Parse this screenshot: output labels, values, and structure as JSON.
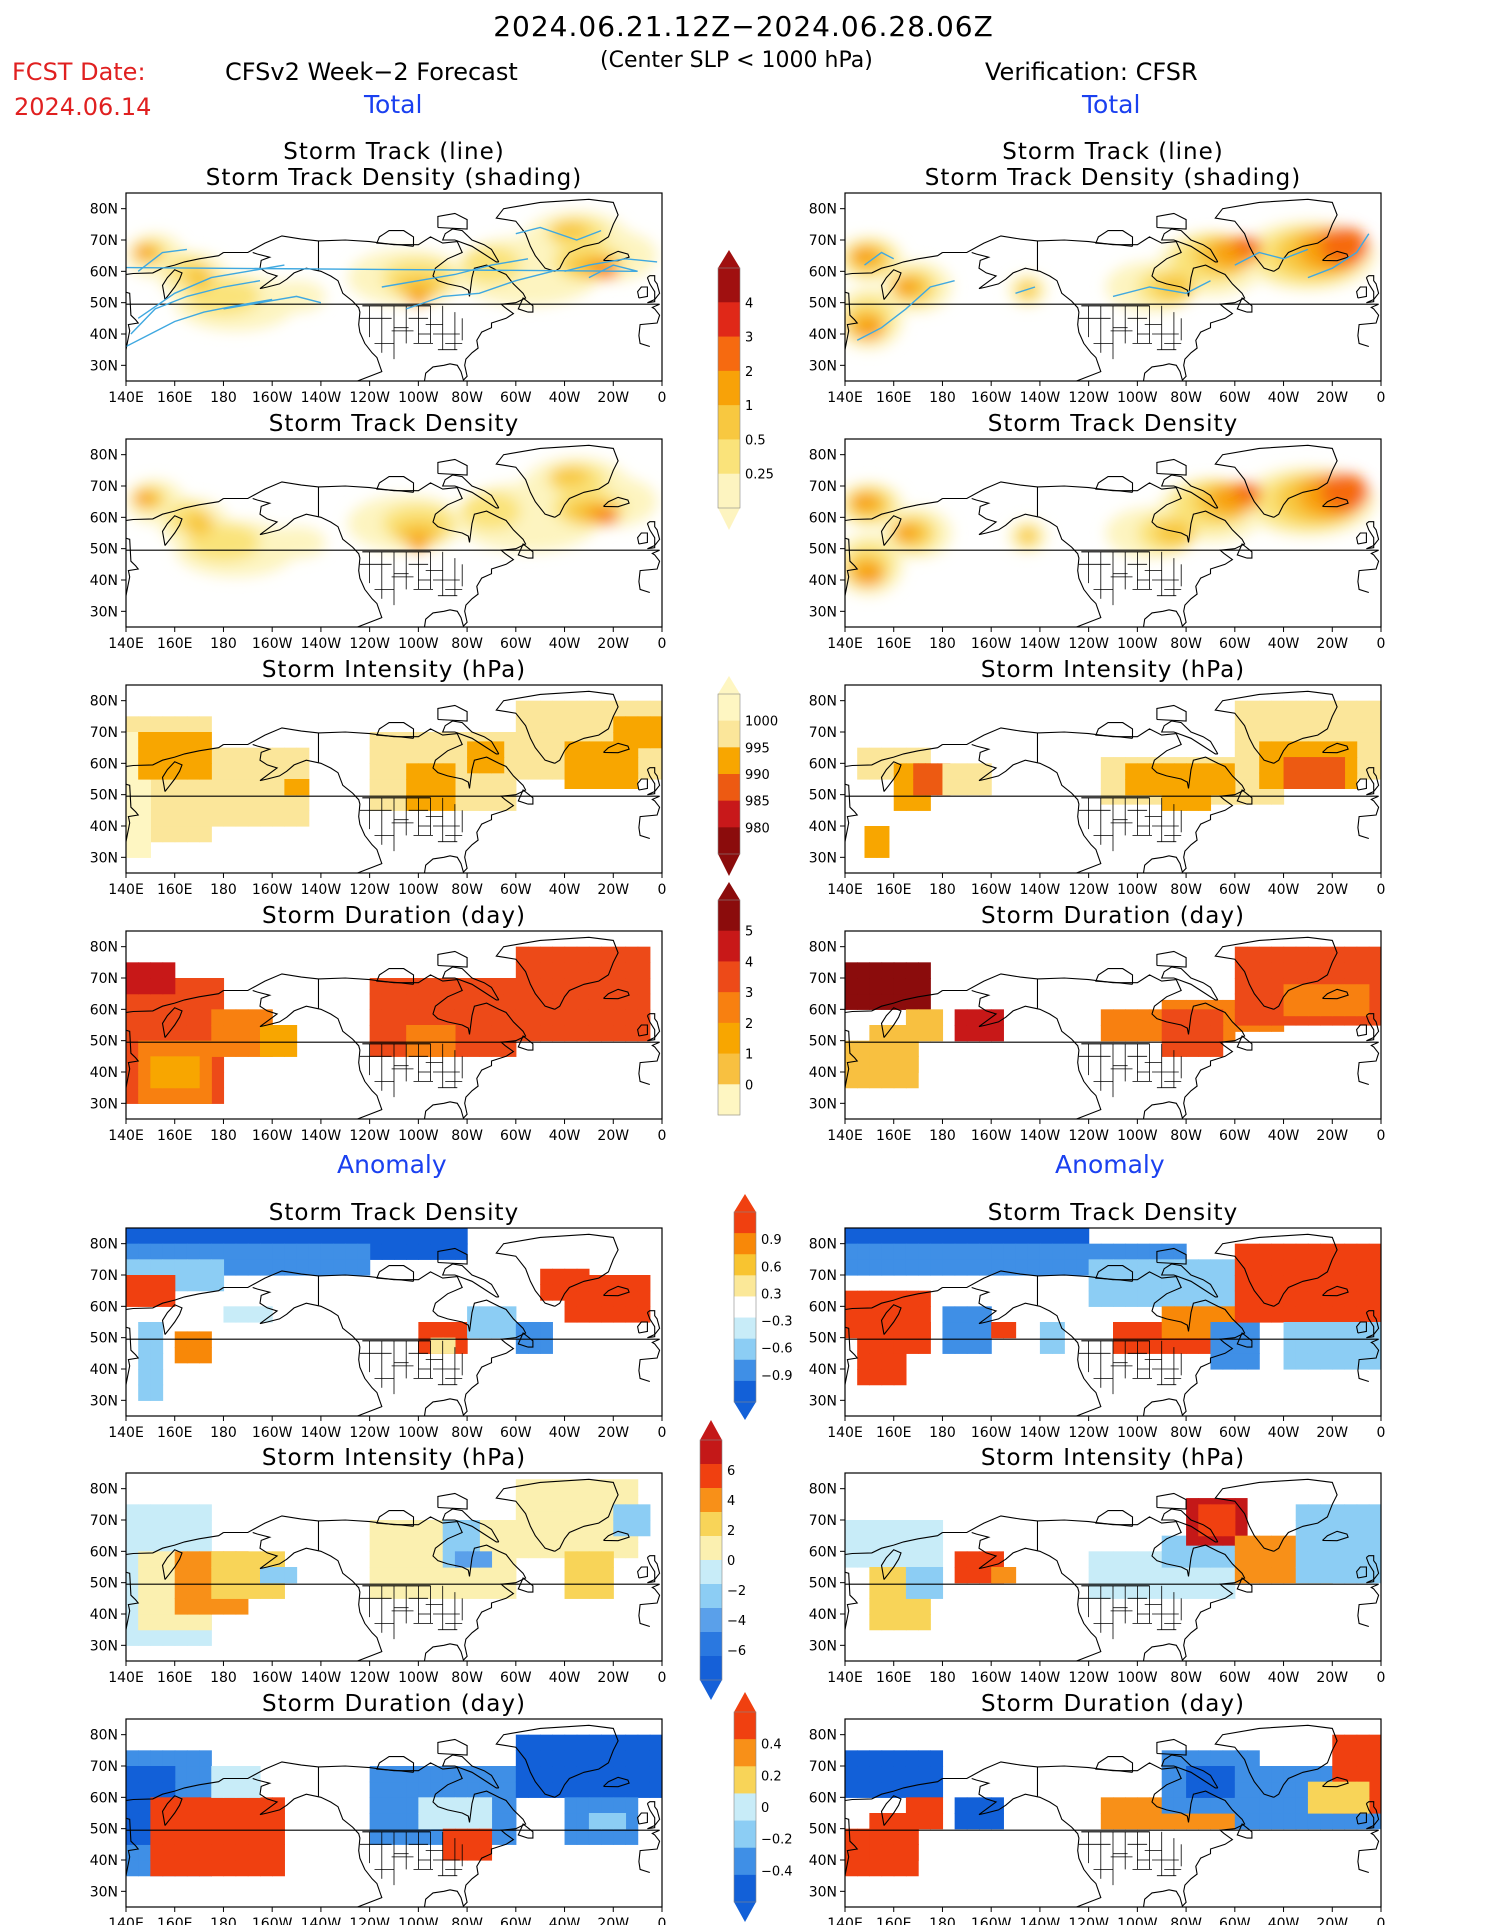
{
  "header": {
    "title": "2024.06.21.12Z−2024.06.28.06Z",
    "subtitle": "(Center SLP < 1000 hPa)",
    "fcst_label": "FCST Date:",
    "fcst_date": "2024.06.14",
    "left_title": "CFSv2 Week−2 Forecast",
    "right_title": "Verification: CFSR"
  },
  "sections": {
    "total_label": "Total",
    "anomaly_label": "Anomaly"
  },
  "axes": {
    "lat_labels": [
      "80N",
      "70N",
      "60N",
      "50N",
      "40N",
      "30N"
    ],
    "lon_labels": [
      "140E",
      "160E",
      "180",
      "160W",
      "140W",
      "120W",
      "100W",
      "80W",
      "60W",
      "40W",
      "20W",
      "0"
    ]
  },
  "panels": [
    {
      "id": "fc-track",
      "column": "forecast",
      "title": [
        "Storm Track (line)",
        "Storm Track Density (shading)"
      ]
    },
    {
      "id": "fc-density",
      "column": "forecast",
      "title": [
        "Storm Track Density"
      ]
    },
    {
      "id": "fc-intensity",
      "column": "forecast",
      "title": [
        "Storm Intensity (hPa)"
      ]
    },
    {
      "id": "fc-duration",
      "column": "forecast",
      "title": [
        "Storm Duration (day)"
      ]
    },
    {
      "id": "fc-density-anom",
      "column": "forecast",
      "title": [
        "Storm Track Density"
      ]
    },
    {
      "id": "fc-intensity-anom",
      "column": "forecast",
      "title": [
        "Storm Intensity (hPa)"
      ]
    },
    {
      "id": "fc-duration-anom",
      "column": "forecast",
      "title": [
        "Storm Duration (day)"
      ]
    },
    {
      "id": "vf-track",
      "column": "verification",
      "title": [
        "Storm Track (line)",
        "Storm Track Density (shading)"
      ]
    },
    {
      "id": "vf-density",
      "column": "verification",
      "title": [
        "Storm Track Density"
      ]
    },
    {
      "id": "vf-intensity",
      "column": "verification",
      "title": [
        "Storm Intensity (hPa)"
      ]
    },
    {
      "id": "vf-duration",
      "column": "verification",
      "title": [
        "Storm Duration (day)"
      ]
    },
    {
      "id": "vf-density-anom",
      "column": "verification",
      "title": [
        "Storm Track Density"
      ]
    },
    {
      "id": "vf-intensity-anom",
      "column": "verification",
      "title": [
        "Storm Intensity (hPa)"
      ]
    },
    {
      "id": "vf-duration-anom",
      "column": "verification",
      "title": [
        "Storm Duration (day)"
      ]
    }
  ],
  "colorbars": [
    {
      "id": "density",
      "labels": [
        "4",
        "3",
        "2",
        "1",
        "0.5",
        "0.25"
      ],
      "colors": [
        "#a01010",
        "#e02818",
        "#f66a10",
        "#f8a208",
        "#f8c840",
        "#fae37a",
        "#fdf4c0"
      ]
    },
    {
      "id": "intensity",
      "labels": [
        "1000",
        "995",
        "990",
        "985",
        "980"
      ],
      "colors": [
        "#fef6c2",
        "#fbe69a",
        "#f8a600",
        "#ed5a12",
        "#c8181a",
        "#8b0c0c"
      ]
    },
    {
      "id": "duration",
      "labels": [
        "5",
        "4",
        "3",
        "2",
        "1",
        "0"
      ],
      "colors": [
        "#8b0c0c",
        "#c81818",
        "#ed4a18",
        "#f88010",
        "#f8a600",
        "#f8c040",
        "#fef6c2"
      ]
    },
    {
      "id": "density-anom",
      "labels": [
        "0.9",
        "0.6",
        "0.3",
        "−0.3",
        "−0.6",
        "−0.9"
      ],
      "colors": [
        "#f04010",
        "#f88808",
        "#f8c430",
        "#fbe898",
        "#ffffff",
        "#c8ecf8",
        "#8ccdf4",
        "#3f8fe6",
        "#1260d8"
      ]
    },
    {
      "id": "intensity-anom",
      "labels": [
        "6",
        "4",
        "2",
        "0",
        "−2",
        "−4",
        "−6"
      ],
      "colors": [
        "#c41818",
        "#f04010",
        "#f89018",
        "#f8d458",
        "#fbf0b0",
        "#c8ecf8",
        "#8ccdf4",
        "#5aa0ea",
        "#2a78e0",
        "#1560d8"
      ]
    },
    {
      "id": "duration-anom",
      "labels": [
        "0.4",
        "0.2",
        "0",
        "−0.2",
        "−0.4"
      ],
      "colors": [
        "#f04010",
        "#f89018",
        "#f8d458",
        "#c8ecf8",
        "#8ccdf4",
        "#3f8fe6",
        "#1260d8"
      ]
    }
  ],
  "legend_colors": {
    "title_blue": "#1a40f0",
    "fcst_red": "#e02020",
    "track_line": "#3fa8e0"
  }
}
